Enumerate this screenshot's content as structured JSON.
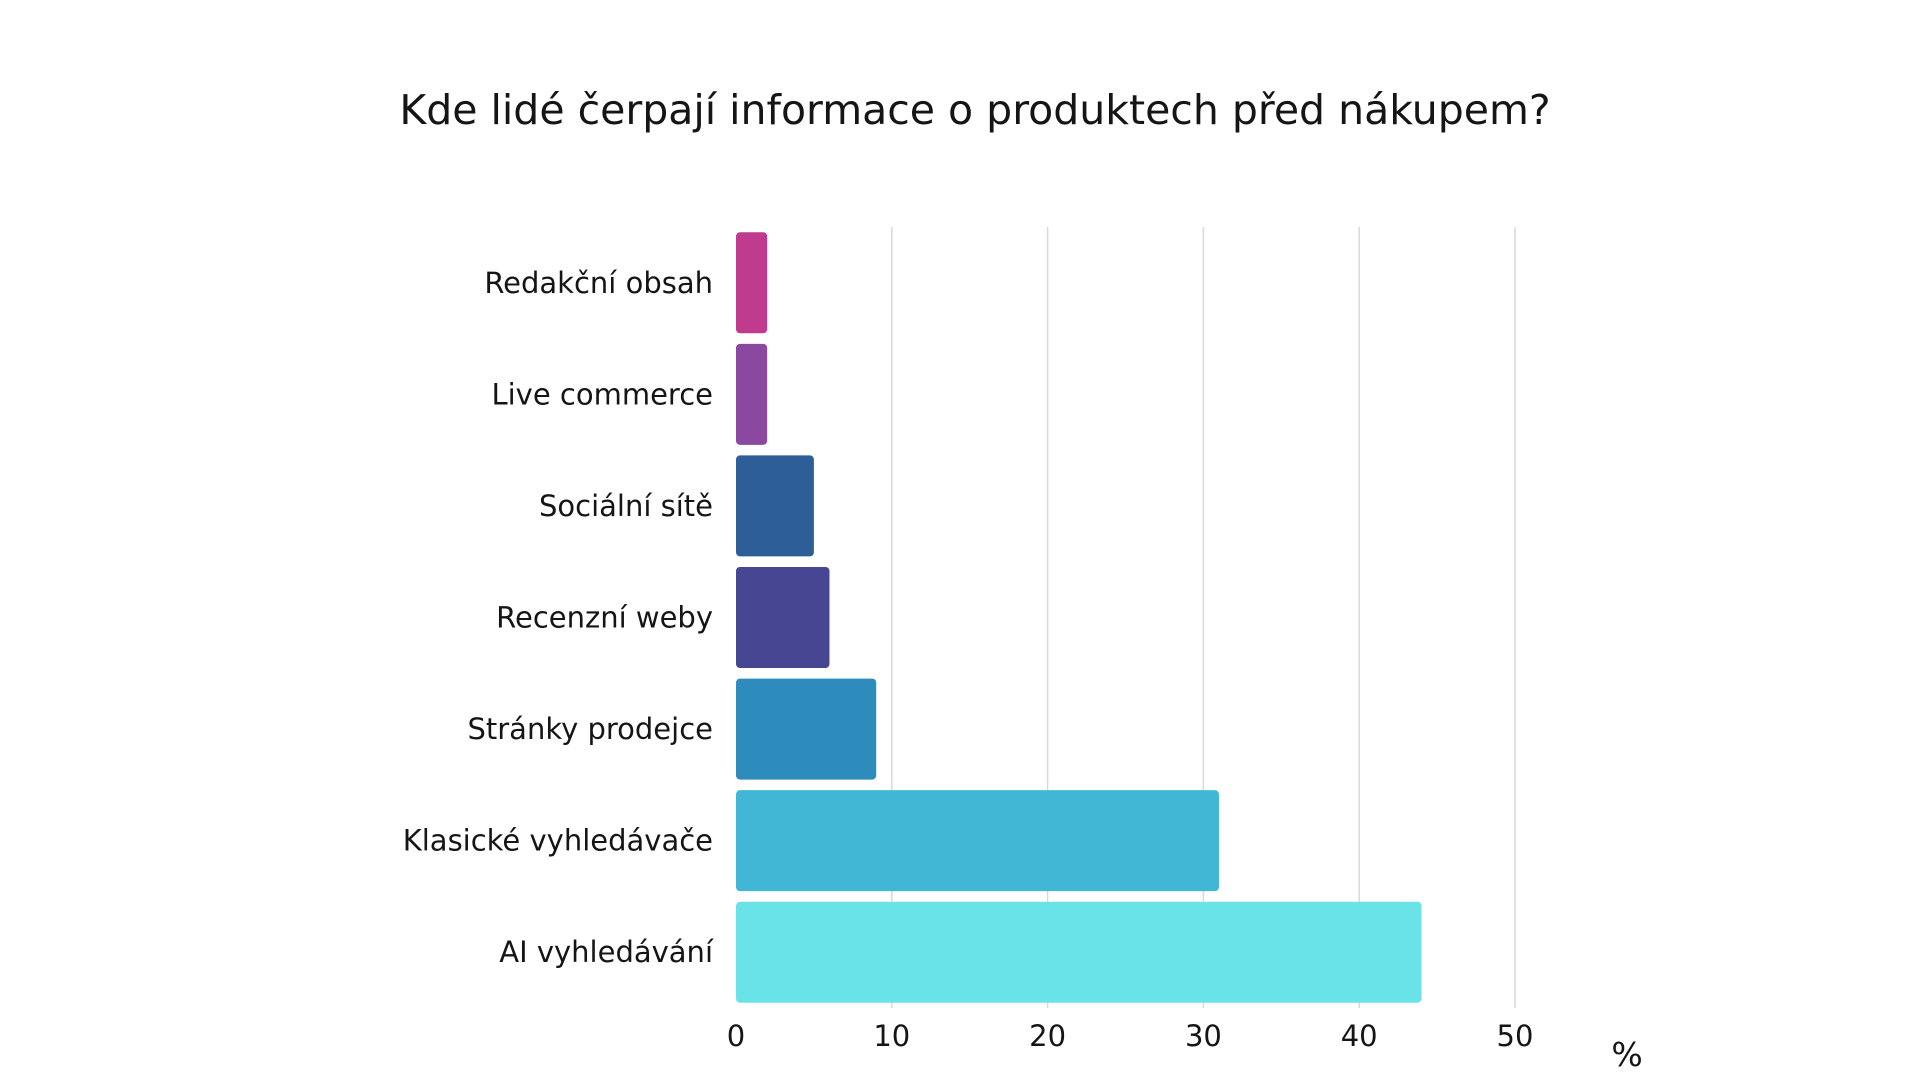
{
  "chart_data": {
    "type": "bar",
    "orientation": "horizontal",
    "title": "Kde lidé čerpají informace o produktech před nákupem?",
    "unit_label": "%",
    "categories": [
      "Redakční obsah",
      "Live commerce",
      "Sociální sítě",
      "Recenzní weby",
      "Stránky prodejce",
      "Klasické vyhledávače",
      "AI vyhledávání"
    ],
    "values": [
      2,
      2,
      5,
      6,
      9,
      31,
      44
    ],
    "colors": [
      "#C03A8E",
      "#8A48A1",
      "#2E5E98",
      "#464693",
      "#2E8CBC",
      "#41B7D5",
      "#6AE3E8"
    ],
    "xlim": [
      0,
      50
    ],
    "x_ticks": [
      0,
      10,
      20,
      30,
      40,
      50
    ],
    "grid": true
  }
}
